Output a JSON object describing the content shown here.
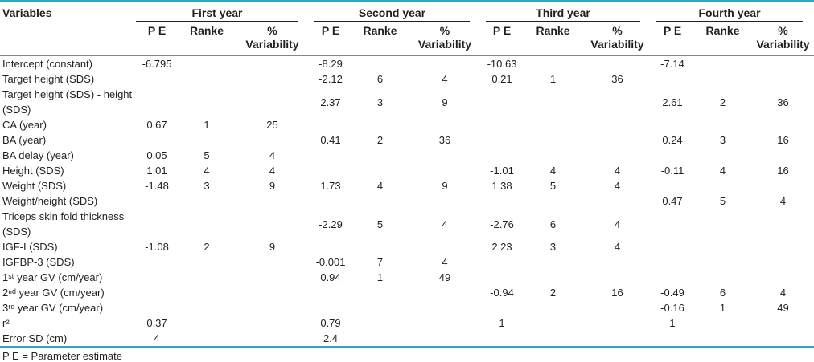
{
  "colors": {
    "accent": "#2ba6c9",
    "text": "#231f20"
  },
  "table": {
    "variables_header": "Variables",
    "year_groups": [
      "First year",
      "Second year",
      "Third year",
      "Fourth year"
    ],
    "sub_headers": {
      "pe": "P E",
      "rank": "Ranke",
      "variability": "% Variability"
    },
    "rows": [
      {
        "label": "Intercept (constant)",
        "cells": [
          "-6.795",
          "",
          "",
          "-8.29",
          "",
          "",
          "-10.63",
          "",
          "",
          "-7.14",
          "",
          ""
        ]
      },
      {
        "label": "Target height (SDS)",
        "cells": [
          "",
          "",
          "",
          "-2.12",
          "6",
          "4",
          "0.21",
          "1",
          "36",
          "",
          "",
          ""
        ]
      },
      {
        "label": "Target height (SDS) - height (SDS)",
        "cells": [
          "",
          "",
          "",
          "2.37",
          "3",
          "9",
          "",
          "",
          "",
          "2.61",
          "2",
          "36"
        ]
      },
      {
        "label": "CA (year)",
        "cells": [
          "0.67",
          "1",
          "25",
          "",
          "",
          "",
          "",
          "",
          "",
          "",
          "",
          ""
        ]
      },
      {
        "label": "BA (year)",
        "cells": [
          "",
          "",
          "",
          "0.41",
          "2",
          "36",
          "",
          "",
          "",
          "0.24",
          "3",
          "16"
        ]
      },
      {
        "label": "BA delay (year)",
        "cells": [
          "0.05",
          "5",
          "4",
          "",
          "",
          "",
          "",
          "",
          "",
          "",
          "",
          ""
        ]
      },
      {
        "label": "Height (SDS)",
        "cells": [
          "1.01",
          "4",
          "4",
          "",
          "",
          "",
          "-1.01",
          "4",
          "4",
          "-0.11",
          "4",
          "16"
        ]
      },
      {
        "label": "Weight (SDS)",
        "cells": [
          "-1.48",
          "3",
          "9",
          "1.73",
          "4",
          "9",
          "1.38",
          "5",
          "4",
          "",
          "",
          ""
        ]
      },
      {
        "label": "Weight/height (SDS)",
        "cells": [
          "",
          "",
          "",
          "",
          "",
          "",
          "",
          "",
          "",
          "0.47",
          "5",
          "4"
        ]
      },
      {
        "label": "Triceps skin fold thickness (SDS)",
        "cells": [
          "",
          "",
          "",
          "-2.29",
          "5",
          "4",
          "-2.76",
          "6",
          "4",
          "",
          "",
          ""
        ]
      },
      {
        "label": "IGF-I (SDS)",
        "cells": [
          "-1.08",
          "2",
          "9",
          "",
          "",
          "",
          "2.23",
          "3",
          "4",
          "",
          "",
          ""
        ]
      },
      {
        "label": "IGFBP-3 (SDS)",
        "cells": [
          "",
          "",
          "",
          "-0.001",
          "7",
          "4",
          "",
          "",
          "",
          "",
          "",
          ""
        ]
      },
      {
        "label": "1ˢᵗ year GV (cm/year)",
        "cells": [
          "",
          "",
          "",
          "0.94",
          "1",
          "49",
          "",
          "",
          "",
          "",
          "",
          ""
        ]
      },
      {
        "label": "2ⁿᵈ year GV (cm/year)",
        "cells": [
          "",
          "",
          "",
          "",
          "",
          "",
          "-0.94",
          "2",
          "16",
          "-0.49",
          "6",
          "4"
        ]
      },
      {
        "label": "3ʳᵈ year GV (cm/year)",
        "cells": [
          "",
          "",
          "",
          "",
          "",
          "",
          "",
          "",
          "",
          "-0.16",
          "1",
          "49"
        ]
      },
      {
        "label": "r²",
        "cells": [
          "0.37",
          "",
          "",
          "0.79",
          "",
          "",
          "1",
          "",
          "",
          "1",
          "",
          ""
        ]
      },
      {
        "label": "Error SD (cm)",
        "cells": [
          "4",
          "",
          "",
          "2.4",
          "",
          "",
          "",
          "",
          "",
          "",
          "",
          ""
        ]
      }
    ],
    "footnote": "P E = Parameter estimate"
  }
}
